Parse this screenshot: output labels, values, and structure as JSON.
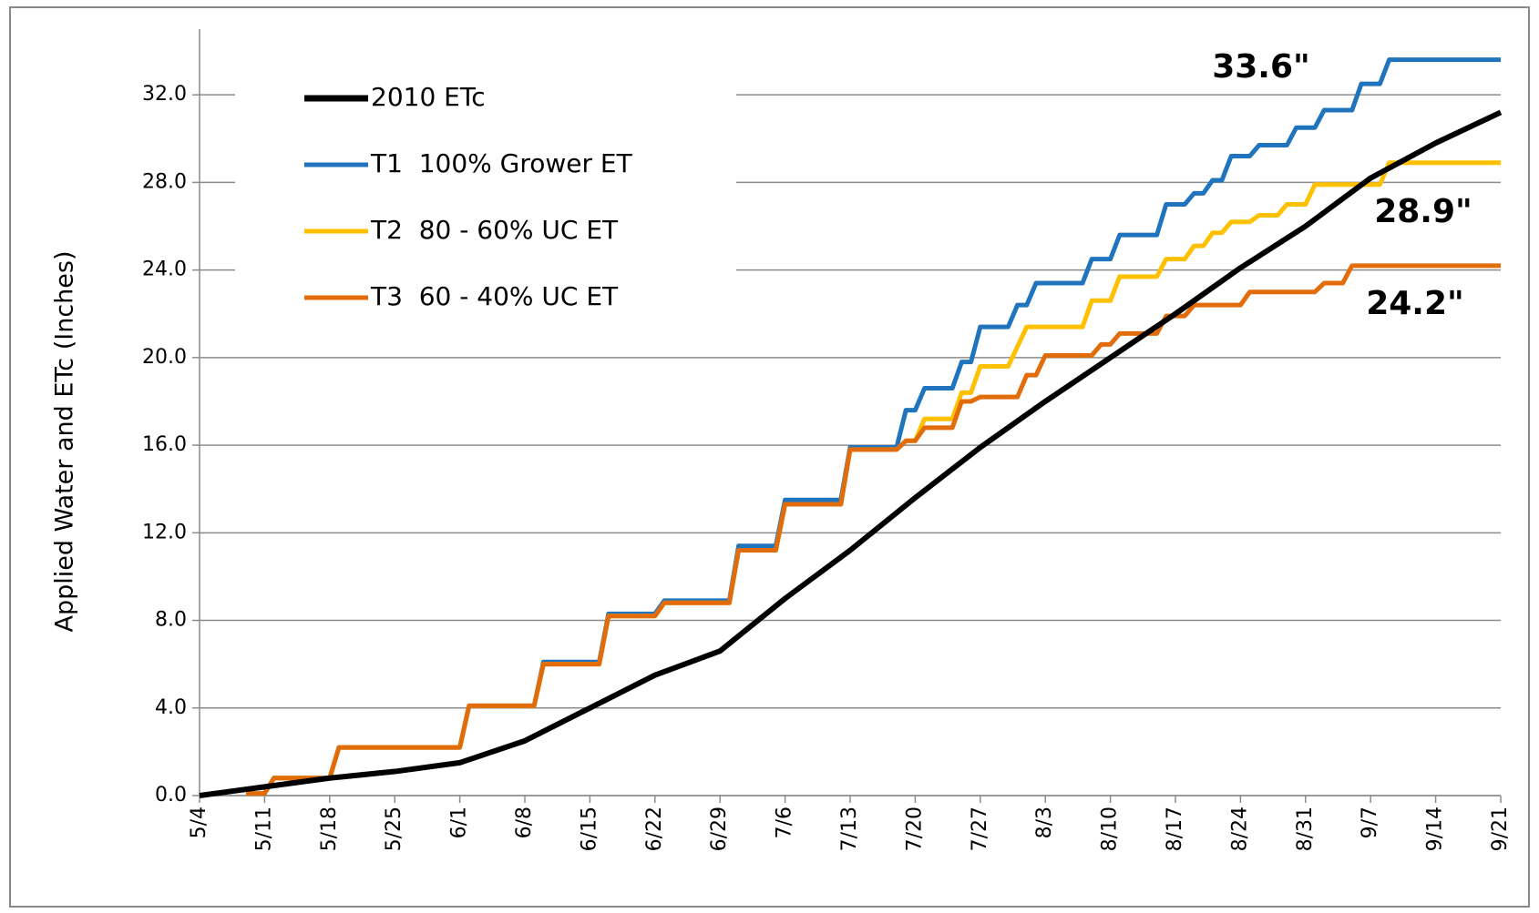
{
  "chart_data": {
    "type": "line",
    "y_label": "Applied Water and ETc  (Inches)",
    "xlim": [
      0,
      140
    ],
    "xticks": [
      {
        "value": 0,
        "label": "5/4"
      },
      {
        "value": 7,
        "label": "5/11"
      },
      {
        "value": 14,
        "label": "5/18"
      },
      {
        "value": 21,
        "label": "5/25"
      },
      {
        "value": 28,
        "label": "6/1"
      },
      {
        "value": 35,
        "label": "6/8"
      },
      {
        "value": 42,
        "label": "6/15"
      },
      {
        "value": 49,
        "label": "6/22"
      },
      {
        "value": 56,
        "label": "6/29"
      },
      {
        "value": 63,
        "label": "7/6"
      },
      {
        "value": 70,
        "label": "7/13"
      },
      {
        "value": 77,
        "label": "7/20"
      },
      {
        "value": 84,
        "label": "7/27"
      },
      {
        "value": 91,
        "label": "8/3"
      },
      {
        "value": 98,
        "label": "8/10"
      },
      {
        "value": 105,
        "label": "8/17"
      },
      {
        "value": 112,
        "label": "8/24"
      },
      {
        "value": 119,
        "label": "8/31"
      },
      {
        "value": 126,
        "label": "9/7"
      },
      {
        "value": 133,
        "label": "9/14"
      },
      {
        "value": 140,
        "label": "9/21"
      }
    ],
    "ylim": [
      0,
      35
    ],
    "yticks": [
      {
        "value": 0,
        "label": "0.0"
      },
      {
        "value": 4,
        "label": "4.0"
      },
      {
        "value": 8,
        "label": "8.0"
      },
      {
        "value": 12,
        "label": "12.0"
      },
      {
        "value": 16,
        "label": "16.0"
      },
      {
        "value": 20,
        "label": "20.0"
      },
      {
        "value": 24,
        "label": "24.0"
      },
      {
        "value": 28,
        "label": "28.0"
      },
      {
        "value": 32,
        "label": "32.0"
      }
    ],
    "grid": true,
    "legend": "upper left",
    "series": [
      {
        "name": "2010 ETc",
        "color": "#000000",
        "x": [
          0,
          7,
          14,
          21,
          28,
          35,
          42,
          49,
          56,
          63,
          70,
          77,
          84,
          91,
          98,
          105,
          112,
          119,
          126,
          133,
          140
        ],
        "values": [
          0,
          0.4,
          0.8,
          1.1,
          1.5,
          2.5,
          4.0,
          5.5,
          6.6,
          9.0,
          11.2,
          13.6,
          15.9,
          18.0,
          20.0,
          22.0,
          24.1,
          26.0,
          28.2,
          29.8,
          31.2
        ]
      },
      {
        "name": "T1  100% Grower ET",
        "color": "#1f74bd",
        "x": [
          5,
          7,
          8,
          14,
          15,
          28,
          29,
          36,
          37,
          43,
          44,
          49,
          50,
          57,
          58,
          62,
          63,
          69,
          70,
          75,
          76,
          77,
          78,
          81,
          82,
          83,
          84,
          87,
          88,
          89,
          90,
          95,
          96,
          98,
          99,
          103,
          104,
          106,
          107,
          108,
          109,
          110,
          111,
          113,
          114,
          117,
          118,
          120,
          121,
          124,
          125,
          127,
          128,
          140
        ],
        "values": [
          0.1,
          0.1,
          0.8,
          0.8,
          2.2,
          2.2,
          4.1,
          4.1,
          6.1,
          6.1,
          8.3,
          8.3,
          8.9,
          8.9,
          11.4,
          11.4,
          13.5,
          13.5,
          15.9,
          15.9,
          17.6,
          17.6,
          18.6,
          18.6,
          19.8,
          19.8,
          21.4,
          21.4,
          22.4,
          22.4,
          23.4,
          23.4,
          24.5,
          24.5,
          25.6,
          25.6,
          27.0,
          27.0,
          27.5,
          27.5,
          28.1,
          28.1,
          29.2,
          29.2,
          29.7,
          29.7,
          30.5,
          30.5,
          31.3,
          31.3,
          32.5,
          32.5,
          33.6,
          33.6
        ]
      },
      {
        "name": "T2  80 - 60% UC ET",
        "color": "#ffc000",
        "x": [
          5,
          7,
          8,
          14,
          15,
          28,
          29,
          36,
          37,
          43,
          44,
          49,
          50,
          57,
          58,
          62,
          63,
          69,
          70,
          75,
          76,
          77,
          78,
          81,
          82,
          83,
          84,
          87,
          88,
          89,
          95,
          96,
          98,
          99,
          103,
          104,
          106,
          107,
          108,
          109,
          110,
          111,
          113,
          114,
          116,
          117,
          119,
          120,
          127,
          128,
          140
        ],
        "values": [
          0.1,
          0.1,
          0.8,
          0.8,
          2.2,
          2.2,
          4.1,
          4.1,
          6.0,
          6.0,
          8.2,
          8.2,
          8.8,
          8.8,
          11.2,
          11.2,
          13.3,
          13.3,
          15.8,
          15.8,
          16.2,
          16.2,
          17.2,
          17.2,
          18.4,
          18.4,
          19.6,
          19.6,
          20.5,
          21.4,
          21.4,
          22.6,
          22.6,
          23.7,
          23.7,
          24.5,
          24.5,
          25.1,
          25.1,
          25.7,
          25.7,
          26.2,
          26.2,
          26.5,
          26.5,
          27.0,
          27.0,
          27.9,
          27.9,
          28.9,
          28.9
        ]
      },
      {
        "name": "T3  60 - 40% UC ET",
        "color": "#e36c0a",
        "x": [
          5,
          7,
          8,
          14,
          15,
          28,
          29,
          36,
          37,
          43,
          44,
          49,
          50,
          57,
          58,
          62,
          63,
          69,
          70,
          75,
          76,
          77,
          78,
          81,
          82,
          83,
          84,
          88,
          89,
          90,
          91,
          96,
          97,
          98,
          99,
          103,
          104,
          106,
          107,
          112,
          113,
          120,
          121,
          123,
          124,
          140
        ],
        "values": [
          0.1,
          0.1,
          0.8,
          0.8,
          2.2,
          2.2,
          4.1,
          4.1,
          6.0,
          6.0,
          8.2,
          8.2,
          8.8,
          8.8,
          11.2,
          11.2,
          13.3,
          13.3,
          15.8,
          15.8,
          16.2,
          16.2,
          16.8,
          16.8,
          18.0,
          18.0,
          18.2,
          18.2,
          19.2,
          19.2,
          20.1,
          20.1,
          20.6,
          20.6,
          21.1,
          21.1,
          21.9,
          21.9,
          22.4,
          22.4,
          23.0,
          23.0,
          23.4,
          23.4,
          24.2,
          24.2
        ]
      }
    ],
    "annotations": [
      "33.6\"",
      "28.9\"",
      "24.2\""
    ]
  }
}
